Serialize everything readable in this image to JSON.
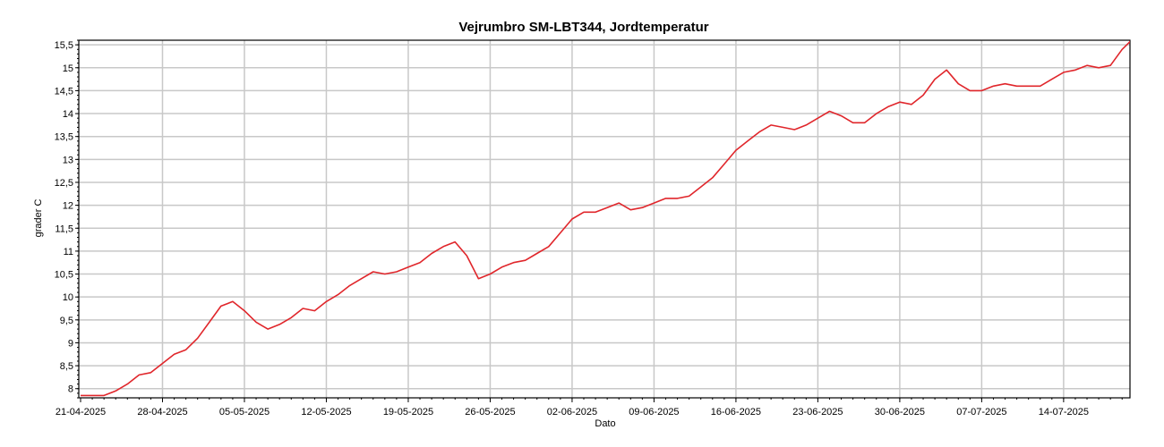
{
  "chart_data": {
    "type": "line",
    "title": "Vejrumbro SM-LBT344, Jordtemperatur",
    "xlabel": "Dato",
    "ylabel": "grader C",
    "x_ticks": [
      "21-04-2025",
      "28-04-2025",
      "05-05-2025",
      "12-05-2025",
      "19-05-2025",
      "26-05-2025",
      "02-06-2025",
      "09-06-2025",
      "16-06-2025",
      "23-06-2025",
      "30-06-2025",
      "07-07-2025",
      "14-07-2025"
    ],
    "y_ticks": [
      "8",
      "8,5",
      "9",
      "9,5",
      "10",
      "10,5",
      "11",
      "11,5",
      "12",
      "12,5",
      "13",
      "13,5",
      "14",
      "14,5",
      "15",
      "15,5"
    ],
    "y_tick_values": [
      8,
      8.5,
      9,
      9.5,
      10,
      10.5,
      11,
      11.5,
      12,
      12.5,
      13,
      13.5,
      14,
      14.5,
      15,
      15.5
    ],
    "xlim": [
      "2025-04-21",
      "2025-07-20"
    ],
    "ylim": [
      7.8,
      15.6
    ],
    "grid": true,
    "colors": {
      "series": "#e0262b",
      "grid": "#c8c8c8",
      "axis": "#000000"
    },
    "series": [
      {
        "x": [
          "2025-04-21",
          "2025-04-22",
          "2025-04-23",
          "2025-04-24",
          "2025-04-25",
          "2025-04-26",
          "2025-04-27",
          "2025-04-28",
          "2025-04-29",
          "2025-04-30",
          "2025-05-01",
          "2025-05-02",
          "2025-05-03",
          "2025-05-04",
          "2025-05-05",
          "2025-05-06",
          "2025-05-07",
          "2025-05-08",
          "2025-05-09",
          "2025-05-10",
          "2025-05-11",
          "2025-05-12",
          "2025-05-13",
          "2025-05-14",
          "2025-05-15",
          "2025-05-16",
          "2025-05-17",
          "2025-05-18",
          "2025-05-19",
          "2025-05-20",
          "2025-05-21",
          "2025-05-22",
          "2025-05-23",
          "2025-05-24",
          "2025-05-25",
          "2025-05-26",
          "2025-05-27",
          "2025-05-28",
          "2025-05-29",
          "2025-05-30",
          "2025-05-31",
          "2025-06-01",
          "2025-06-02",
          "2025-06-03",
          "2025-06-04",
          "2025-06-05",
          "2025-06-06",
          "2025-06-07",
          "2025-06-08",
          "2025-06-09",
          "2025-06-10",
          "2025-06-11",
          "2025-06-12",
          "2025-06-13",
          "2025-06-14",
          "2025-06-15",
          "2025-06-16",
          "2025-06-17",
          "2025-06-18",
          "2025-06-19",
          "2025-06-20",
          "2025-06-21",
          "2025-06-22",
          "2025-06-23",
          "2025-06-24",
          "2025-06-25",
          "2025-06-26",
          "2025-06-27",
          "2025-06-28",
          "2025-06-29",
          "2025-06-30",
          "2025-07-01",
          "2025-07-02",
          "2025-07-03",
          "2025-07-04",
          "2025-07-05",
          "2025-07-06",
          "2025-07-07",
          "2025-07-08",
          "2025-07-09",
          "2025-07-10",
          "2025-07-11",
          "2025-07-12",
          "2025-07-13",
          "2025-07-14",
          "2025-07-15",
          "2025-07-16",
          "2025-07-17",
          "2025-07-18",
          "2025-07-19",
          "2025-07-20"
        ],
        "y": [
          7.85,
          7.85,
          7.85,
          7.95,
          8.1,
          8.3,
          8.35,
          8.55,
          8.75,
          8.85,
          9.1,
          9.45,
          9.8,
          9.9,
          9.7,
          9.45,
          9.3,
          9.4,
          9.55,
          9.75,
          9.7,
          9.9,
          10.05,
          10.25,
          10.4,
          10.55,
          10.5,
          10.55,
          10.65,
          10.75,
          10.95,
          11.1,
          11.2,
          10.9,
          10.4,
          10.5,
          10.65,
          10.75,
          10.8,
          10.95,
          11.1,
          11.4,
          11.7,
          11.85,
          11.85,
          11.95,
          12.05,
          11.9,
          11.95,
          12.05,
          12.15,
          12.15,
          12.2,
          12.4,
          12.6,
          12.9,
          13.2,
          13.4,
          13.6,
          13.75,
          13.7,
          13.65,
          13.75,
          13.9,
          14.05,
          13.95,
          13.8,
          13.8,
          14,
          14.15,
          14.25,
          14.2,
          14.4,
          14.75,
          14.95,
          14.65,
          14.5,
          14.5,
          14.6,
          14.65,
          14.6,
          14.6,
          14.6,
          14.75,
          14.9,
          14.95,
          15.05,
          15.0,
          15.05,
          15.4,
          15.65
        ]
      }
    ]
  }
}
